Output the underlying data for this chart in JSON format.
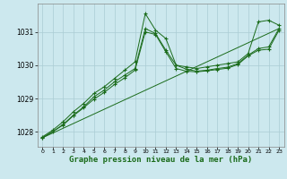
{
  "title": "Graphe pression niveau de la mer (hPa)",
  "title_fontsize": 6.5,
  "bg_color": "#cce8ee",
  "line_color": "#1a6b1a",
  "ylim": [
    1027.55,
    1031.85
  ],
  "xlim": [
    -0.5,
    23.5
  ],
  "yticks": [
    1028,
    1029,
    1030,
    1031
  ],
  "xticks": [
    0,
    1,
    2,
    3,
    4,
    5,
    6,
    7,
    8,
    9,
    10,
    11,
    12,
    13,
    14,
    15,
    16,
    17,
    18,
    19,
    20,
    21,
    22,
    23
  ],
  "series": [
    {
      "x": [
        0,
        1,
        2,
        3,
        4,
        5,
        6,
        7,
        8,
        9,
        10,
        11,
        12,
        13,
        14,
        15,
        16,
        17,
        18,
        19,
        20,
        21,
        22,
        23
      ],
      "y": [
        1027.85,
        1028.05,
        1028.3,
        1028.6,
        1028.85,
        1029.15,
        1029.35,
        1029.6,
        1029.85,
        1030.1,
        1031.55,
        1031.05,
        1030.8,
        1030.0,
        1029.95,
        1029.9,
        1029.95,
        1030.0,
        1030.05,
        1030.1,
        1030.35,
        1031.3,
        1031.35,
        1031.2
      ]
    },
    {
      "x": [
        0,
        1,
        2,
        3,
        4,
        5,
        6,
        7,
        8,
        9,
        10,
        11,
        12,
        13,
        14,
        15,
        16,
        17,
        18,
        19,
        20,
        21,
        22,
        23
      ],
      "y": [
        1027.82,
        1028.0,
        1028.22,
        1028.5,
        1028.75,
        1029.05,
        1029.25,
        1029.5,
        1029.7,
        1029.9,
        1031.1,
        1030.95,
        1030.45,
        1030.0,
        1029.88,
        1029.82,
        1029.85,
        1029.9,
        1029.94,
        1030.05,
        1030.3,
        1030.5,
        1030.55,
        1031.1
      ]
    },
    {
      "x": [
        0,
        2,
        3,
        4,
        5,
        6,
        7,
        8,
        9,
        10,
        11,
        12,
        13,
        14,
        15,
        16,
        17,
        18,
        19,
        20,
        21,
        22,
        23
      ],
      "y": [
        1027.82,
        1028.2,
        1028.48,
        1028.72,
        1028.98,
        1029.18,
        1029.42,
        1029.62,
        1029.85,
        1031.0,
        1030.92,
        1030.4,
        1029.9,
        1029.82,
        1029.8,
        1029.83,
        1029.87,
        1029.91,
        1030.02,
        1030.28,
        1030.45,
        1030.48,
        1031.05
      ]
    },
    {
      "x": [
        0,
        23
      ],
      "y": [
        1027.82,
        1031.1
      ]
    }
  ]
}
